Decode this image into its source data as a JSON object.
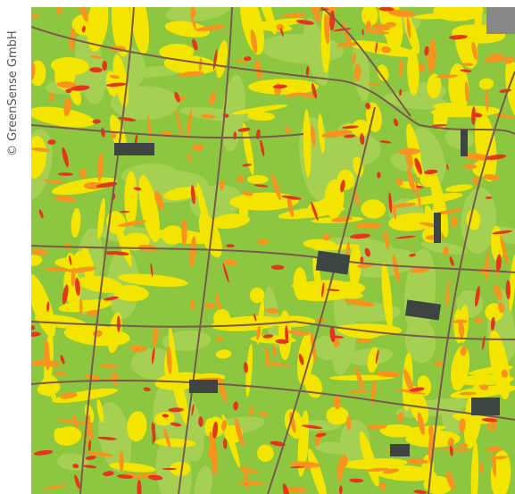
{
  "credit": "© GreenSense GmbH"
}
